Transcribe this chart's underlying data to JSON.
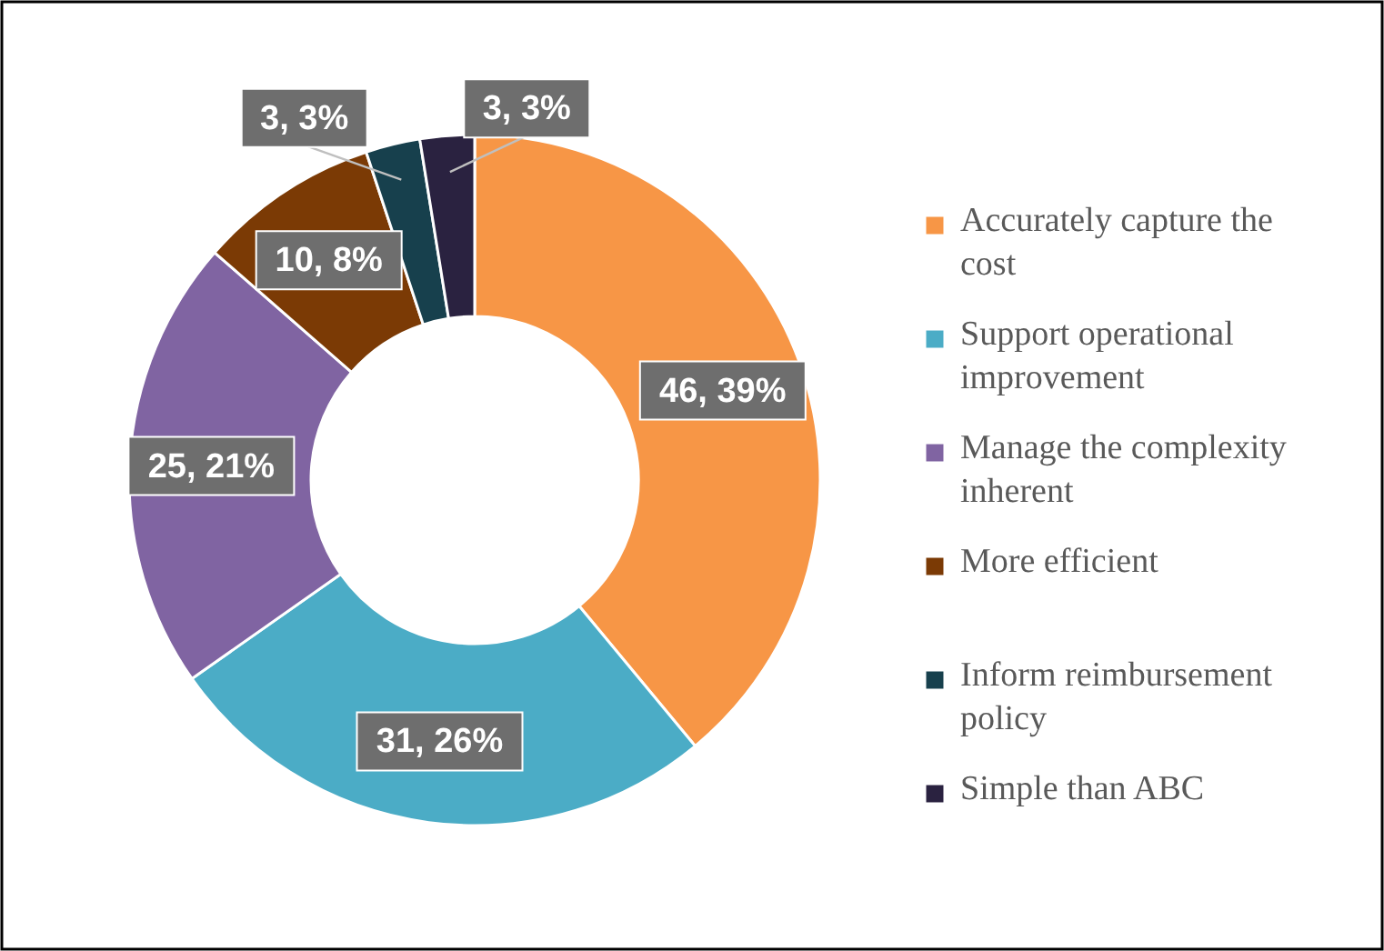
{
  "chart_data": {
    "type": "donut",
    "categories": [
      "Accurately capture the cost",
      "Support operational improvement",
      "Manage the complexity inherent",
      "More efficient",
      "Inform reimbursement policy",
      "Simple than ABC"
    ],
    "values": [
      46,
      31,
      25,
      10,
      3,
      3
    ],
    "colors": [
      "#f79646",
      "#4bacc6",
      "#8064a2",
      "#7b3a05",
      "#17404d",
      "#2a2240"
    ],
    "value_labels": [
      "46, 39%",
      "31, 26%",
      "25, 21%",
      "10, 8%",
      "3, 3%",
      "3, 3%"
    ],
    "legend": "right"
  }
}
